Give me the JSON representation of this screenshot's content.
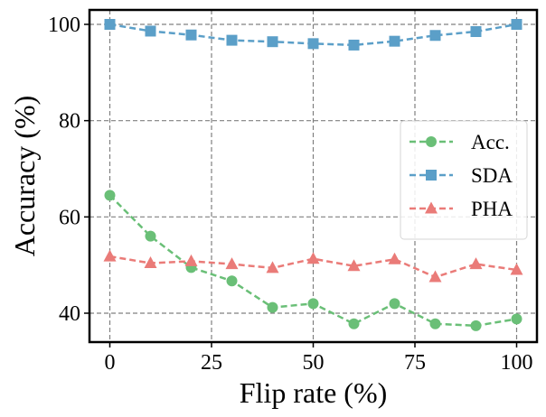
{
  "chart_data": {
    "type": "line",
    "title": "",
    "xlabel": "Flip rate (%)",
    "ylabel": "Accuracy (%)",
    "xlim": [
      -5,
      105
    ],
    "ylim": [
      34,
      103
    ],
    "x": [
      0,
      10,
      20,
      30,
      40,
      50,
      60,
      70,
      80,
      90,
      100
    ],
    "xticks": [
      0,
      25,
      50,
      75,
      100
    ],
    "yticks": [
      40,
      60,
      80,
      100
    ],
    "xtick_labels": [
      "0",
      "25",
      "50",
      "75",
      "100"
    ],
    "ytick_labels": [
      "40",
      "60",
      "80",
      "100"
    ],
    "grid": true,
    "legend_position": "center-right",
    "series": [
      {
        "name": "Acc.",
        "marker": "circle",
        "color": "#6abf77",
        "values": [
          64.5,
          56.0,
          49.5,
          46.7,
          41.2,
          42.0,
          37.8,
          42.0,
          37.8,
          37.4,
          38.8
        ]
      },
      {
        "name": "SDA",
        "marker": "square",
        "color": "#5b9fc8",
        "values": [
          100.0,
          98.6,
          97.8,
          96.7,
          96.4,
          96.0,
          95.7,
          96.5,
          97.7,
          98.5,
          100.0
        ]
      },
      {
        "name": "PHA",
        "marker": "triangle",
        "color": "#ea7b78",
        "values": [
          51.8,
          50.4,
          50.8,
          50.2,
          49.4,
          51.3,
          49.8,
          51.2,
          47.5,
          50.2,
          49.0
        ]
      }
    ]
  }
}
